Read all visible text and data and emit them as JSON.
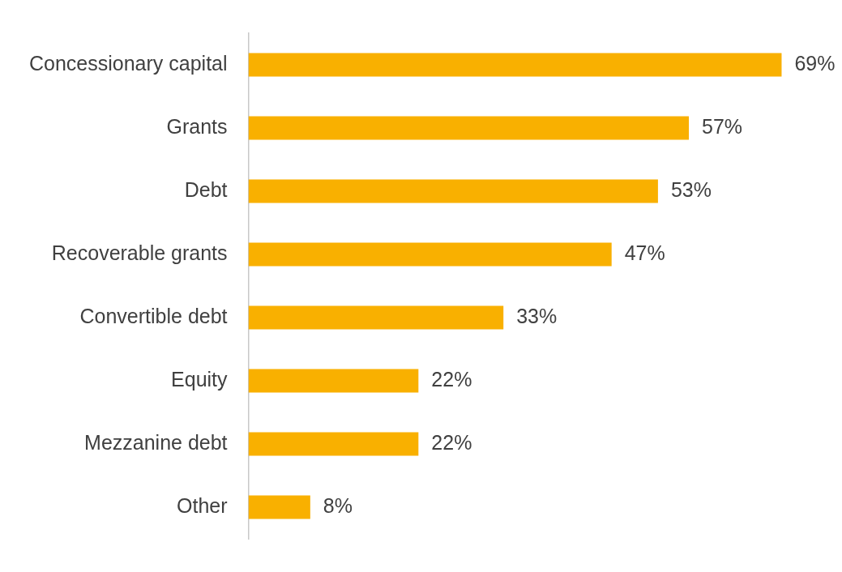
{
  "chart_data": {
    "type": "bar",
    "orientation": "horizontal",
    "categories": [
      "Concessionary capital",
      "Grants",
      "Debt",
      "Recoverable grants",
      "Convertible debt",
      "Equity",
      "Mezzanine debt",
      "Other"
    ],
    "values": [
      69,
      57,
      53,
      47,
      33,
      22,
      22,
      8
    ],
    "value_labels": [
      "69%",
      "57%",
      "53%",
      "47%",
      "33%",
      "22%",
      "22%",
      "8%"
    ],
    "color": "#f9b000",
    "tick_labels": "y"
  }
}
